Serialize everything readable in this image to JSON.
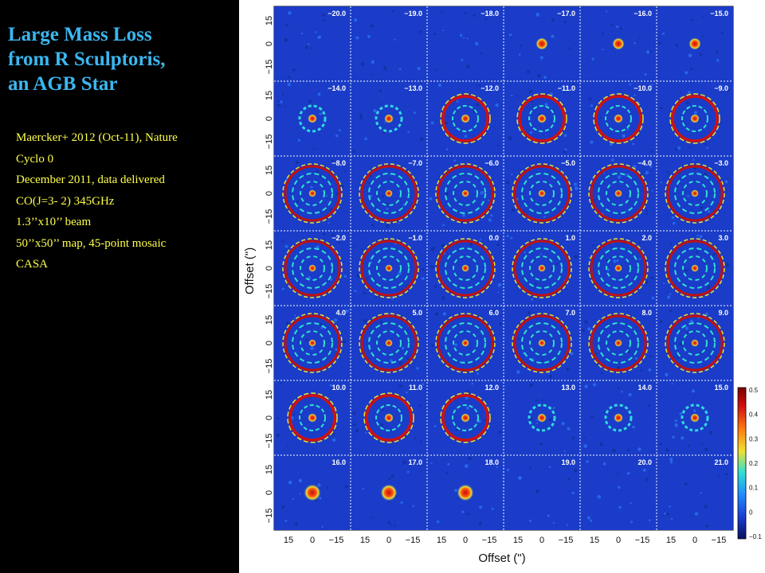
{
  "slide": {
    "title_lines": [
      "Large Mass Loss",
      "from R Sculptoris,",
      "an AGB Star"
    ],
    "info": [
      "Maercker+ 2012 (Oct-11), Nature",
      "Cyclo 0",
      "December 2011, data delivered",
      "CO(J=3- 2)  345GHz",
      "1.3’’x10’’ beam",
      "50’’x50’’ map, 45-point mosaic",
      "CASA"
    ],
    "colors": {
      "title": "#3cb6f0",
      "info_text": "#ffff4a",
      "background": "#000000"
    }
  },
  "figure": {
    "ylabel": "Offset (\")",
    "xlabel": "Offset (\")",
    "y_ticks": [
      "15",
      "0",
      "−15"
    ],
    "x_ticks": [
      "15",
      "0",
      "−15"
    ],
    "velocities": [
      "−20.0",
      "−19.0",
      "−18.0",
      "−17.0",
      "−16.0",
      "−15.0",
      "−14.0",
      "−13.0",
      "−12.0",
      "−11.0",
      "−10.0",
      "−9.0",
      "−8.0",
      "−7.0",
      "−6.0",
      "−5.0",
      "−4.0",
      "−3.0",
      "−2.0",
      "−1.0",
      "0.0",
      "1.0",
      "2.0",
      "3.0",
      "4.0",
      "5.0",
      "6.0",
      "7.0",
      "8.0",
      "9.0",
      "10.0",
      "11.0",
      "12.0",
      "13.0",
      "14.0",
      "15.0",
      "16.0",
      "17.0",
      "18.0",
      "19.0",
      "20.0",
      "21.0"
    ],
    "colorbar": {
      "ticks": [
        "0.5",
        "0.4",
        "0.3",
        "0.2",
        "0.1",
        "0",
        "−0.1"
      ],
      "colors": [
        "#1020a0",
        "#1840d8",
        "#2a80ff",
        "#20d8e8",
        "#d8e030",
        "#ff7a10",
        "#c01010"
      ]
    }
  }
}
